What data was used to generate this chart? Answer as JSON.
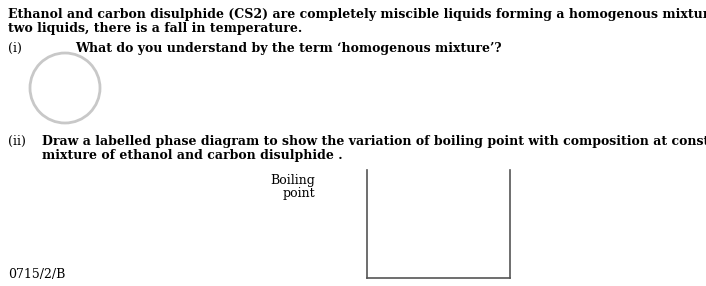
{
  "background_color": "#ffffff",
  "intro_text_line1": "Ethanol and carbon disulphide (CS2) are completely miscible liquids forming a homogenous mixture. On mixing the",
  "intro_text_line2": "two liquids, there is a fall in temperature.",
  "part_i_label": "(i)",
  "part_i_text": "What do you understand by the term ‘homogenous mixture’?",
  "part_ii_label": "(ii)",
  "part_ii_text_line1": "Draw a labelled phase diagram to show the variation of boiling point with composition at constant pressure for a",
  "part_ii_text_line2": "mixture of ethanol and carbon disulphide .",
  "ylabel_line1": "Boiling",
  "ylabel_line2": "point",
  "footer_text": "0715/2/B",
  "watermark_color": "#c8c8c8",
  "text_color": "#000000",
  "font_size_main": 9.0,
  "line_color": "#555555"
}
